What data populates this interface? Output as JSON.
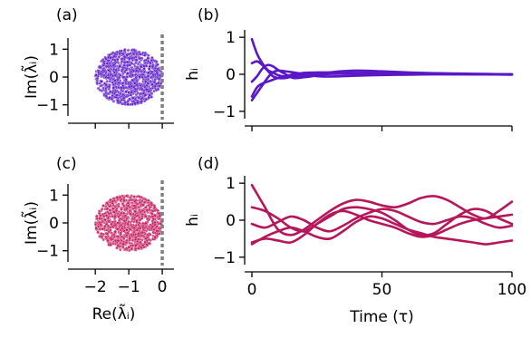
{
  "chart_data": [
    {
      "panel_label": "(a)",
      "type": "scatter",
      "xlabel": "",
      "ylabel": "Im(λ̃ᵢ)",
      "xlim": [
        -2.6,
        0.35
      ],
      "ylim": [
        -1.4,
        1.4
      ],
      "xticks": [
        -2,
        -1,
        0
      ],
      "yticks": [
        -1,
        0,
        1
      ],
      "xticklabels_shown": false,
      "point_color": "#5a17c6",
      "cloud": {
        "center_x": -1.0,
        "center_y": 0.0,
        "radius": 1.0
      },
      "reference_line": {
        "x": 0,
        "style": "dotted",
        "color": "#808080"
      }
    },
    {
      "panel_label": "(b)",
      "type": "line",
      "xlabel": "",
      "ylabel": "hᵢ",
      "xlim": [
        0,
        100
      ],
      "ylim": [
        -1.2,
        1.2
      ],
      "xticks": [
        0,
        50,
        100
      ],
      "yticks": [
        -1,
        0,
        1
      ],
      "xticklabels_shown": false,
      "line_color": "#5a17c6",
      "series": [
        {
          "x": [
            0,
            2,
            4,
            6,
            8,
            10,
            13,
            16,
            20,
            25,
            30,
            40,
            50,
            60,
            70,
            80,
            90,
            100
          ],
          "y": [
            0.95,
            0.55,
            0.3,
            0.12,
            0.05,
            -0.02,
            -0.06,
            -0.03,
            0.02,
            0.03,
            0.02,
            0.01,
            0.0,
            0.0,
            0.0,
            0.0,
            0.0,
            0.0
          ]
        },
        {
          "x": [
            0,
            2,
            4,
            6,
            8,
            10,
            13,
            16,
            20,
            25,
            30,
            40,
            50,
            60,
            70,
            80,
            90,
            100
          ],
          "y": [
            0.3,
            0.35,
            0.25,
            0.1,
            -0.05,
            -0.1,
            -0.1,
            -0.05,
            -0.03,
            -0.02,
            0.01,
            0.03,
            0.05,
            0.04,
            0.03,
            0.01,
            0.0,
            -0.01
          ]
        },
        {
          "x": [
            0,
            2,
            4,
            6,
            8,
            10,
            13,
            16,
            20,
            25,
            30,
            40,
            50,
            60,
            70,
            80,
            90,
            100
          ],
          "y": [
            -0.2,
            -0.05,
            0.15,
            0.25,
            0.22,
            0.12,
            0.0,
            -0.1,
            -0.08,
            -0.03,
            0.05,
            0.1,
            0.08,
            0.05,
            0.03,
            0.02,
            0.01,
            0.0
          ]
        },
        {
          "x": [
            0,
            2,
            4,
            6,
            8,
            10,
            13,
            16,
            20,
            25,
            30,
            40,
            50,
            60,
            70,
            80,
            90,
            100
          ],
          "y": [
            -0.6,
            -0.35,
            -0.25,
            -0.2,
            -0.15,
            -0.1,
            -0.05,
            0.0,
            0.04,
            0.05,
            0.05,
            0.04,
            0.03,
            0.02,
            0.01,
            0.0,
            0.0,
            0.0
          ]
        },
        {
          "x": [
            0,
            2,
            4,
            6,
            8,
            10,
            13,
            16,
            20,
            25,
            30,
            40,
            50,
            60,
            70,
            80,
            90,
            100
          ],
          "y": [
            -0.7,
            -0.5,
            -0.3,
            -0.1,
            0.05,
            0.1,
            0.08,
            0.05,
            0.0,
            -0.05,
            -0.06,
            -0.04,
            -0.02,
            -0.01,
            0.0,
            0.0,
            0.0,
            0.0
          ]
        }
      ]
    },
    {
      "panel_label": "(c)",
      "type": "scatter",
      "xlabel": "Re(λ̃ᵢ)",
      "ylabel": "Im(λ̃ᵢ)",
      "xlim": [
        -2.6,
        0.35
      ],
      "ylim": [
        -1.4,
        1.4
      ],
      "xticks": [
        -2,
        -1,
        0
      ],
      "yticks": [
        -1,
        0,
        1
      ],
      "xticklabels": [
        "−2",
        "−1",
        "0"
      ],
      "point_color": "#c2185b",
      "cloud": {
        "center_x": -1.0,
        "center_y": 0.0,
        "radius": 1.0
      },
      "reference_line": {
        "x": 0,
        "style": "dotted",
        "color": "#808080"
      }
    },
    {
      "panel_label": "(d)",
      "type": "line",
      "xlabel": "Time (τ)",
      "ylabel": "hᵢ",
      "xlim": [
        0,
        100
      ],
      "ylim": [
        -1.2,
        1.2
      ],
      "xticks": [
        0,
        50,
        100
      ],
      "yticks": [
        -1,
        0,
        1
      ],
      "xticklabels": [
        "0",
        "50",
        "100"
      ],
      "line_color": "#b5175a",
      "series": [
        {
          "x": [
            0,
            5,
            10,
            15,
            20,
            25,
            30,
            35,
            40,
            45,
            50,
            55,
            60,
            65,
            70,
            75,
            80,
            85,
            90,
            95,
            100
          ],
          "y": [
            0.95,
            0.35,
            -0.25,
            -0.4,
            -0.25,
            0.0,
            0.25,
            0.45,
            0.55,
            0.5,
            0.4,
            0.35,
            0.45,
            0.6,
            0.65,
            0.55,
            0.35,
            0.15,
            0.05,
            0.25,
            0.5
          ]
        },
        {
          "x": [
            0,
            5,
            10,
            15,
            20,
            25,
            30,
            35,
            40,
            45,
            50,
            55,
            60,
            65,
            70,
            75,
            80,
            85,
            90,
            95,
            100
          ],
          "y": [
            0.35,
            0.25,
            0.05,
            -0.2,
            -0.3,
            -0.1,
            0.1,
            0.3,
            0.35,
            0.3,
            0.2,
            0.0,
            -0.25,
            -0.4,
            -0.35,
            -0.1,
            0.15,
            0.3,
            0.25,
            0.05,
            -0.1
          ]
        },
        {
          "x": [
            0,
            5,
            10,
            15,
            20,
            25,
            30,
            35,
            40,
            45,
            50,
            55,
            60,
            65,
            70,
            75,
            80,
            85,
            90,
            95,
            100
          ],
          "y": [
            -0.1,
            -0.2,
            -0.05,
            0.1,
            0.0,
            -0.2,
            -0.3,
            -0.15,
            0.05,
            0.2,
            0.3,
            0.25,
            0.1,
            -0.05,
            -0.1,
            0.0,
            0.1,
            0.05,
            -0.1,
            -0.2,
            -0.15
          ]
        },
        {
          "x": [
            0,
            5,
            10,
            15,
            20,
            25,
            30,
            35,
            40,
            45,
            50,
            55,
            60,
            65,
            70,
            75,
            80,
            85,
            90,
            95,
            100
          ],
          "y": [
            -0.6,
            -0.5,
            -0.55,
            -0.6,
            -0.4,
            -0.1,
            0.15,
            0.25,
            0.15,
            0.0,
            -0.1,
            -0.2,
            -0.35,
            -0.45,
            -0.4,
            -0.25,
            -0.1,
            0.0,
            0.05,
            0.1,
            0.15
          ]
        },
        {
          "x": [
            0,
            5,
            10,
            15,
            20,
            25,
            30,
            35,
            40,
            45,
            50,
            55,
            60,
            65,
            70,
            75,
            80,
            85,
            90,
            95,
            100
          ],
          "y": [
            -0.65,
            -0.45,
            -0.3,
            -0.2,
            -0.3,
            -0.45,
            -0.5,
            -0.3,
            -0.05,
            0.1,
            0.05,
            -0.1,
            -0.25,
            -0.35,
            -0.45,
            -0.5,
            -0.55,
            -0.6,
            -0.65,
            -0.6,
            -0.55
          ]
        }
      ]
    }
  ]
}
